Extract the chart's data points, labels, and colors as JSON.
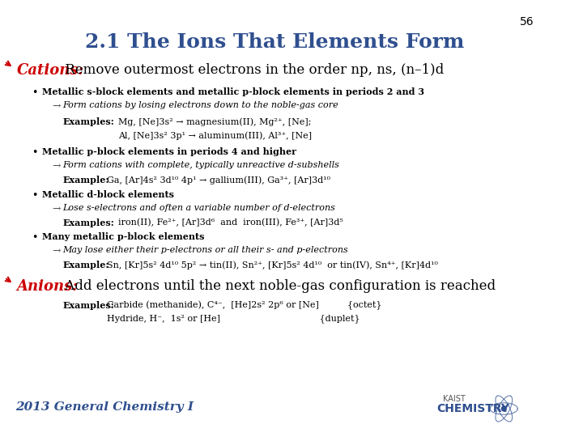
{
  "title": "2.1 The Ions That Elements Form",
  "page_number": "56",
  "background_color": "#ffffff",
  "title_color": "#2F4F8F",
  "title_fontsize": 18,
  "cation_label_color": "#cc0000",
  "anion_label_color": "#cc0000",
  "bullet_color": "#000000",
  "arrow_color": "#555555",
  "footer_text": "2013 General Chemistry I",
  "footer_color": "#2F4F8F",
  "cation_header": "Cations:",
  "cation_body": " Remove outermost electrons in the order np, ns, (n–1)d",
  "anion_header": "Anions:",
  "anion_body": " Add electrons until the next noble-gas configuration is reached",
  "bullets": [
    {
      "bold": "Metallic s-block elements and metallic p-block elements in periods 2 and 3",
      "arrow": "Form cations by losing electrons down to the noble-gas core",
      "examples_label": "Examples:",
      "examples": [
        "Mg, [Ne]3s² → magnesium(II), Mg²⁺, [Ne];",
        "Al, [Ne]3s² 3p¹ → aluminum(III), Al³⁺, [Ne]"
      ]
    },
    {
      "bold": "Metallic p-block elements in periods 4 and higher",
      "arrow": "Form cations with complete, typically unreactive d-subshells",
      "examples_label": "Example:",
      "examples": [
        "Ga, [Ar]4s² 3d¹⁰ 4p¹ → gallium(III), Ga³⁺, [Ar]3d¹⁰"
      ]
    },
    {
      "bold": "Metallic d-block elements",
      "arrow": "Lose s-electrons and often a variable number of d-electrons",
      "examples_label": "Examples:",
      "examples": [
        "iron(II), Fe²⁺, [Ar]3d⁶  and  iron(III), Fe³⁺, [Ar]3d⁵"
      ]
    },
    {
      "bold": "Many metallic p-block elements",
      "arrow": "May lose either their p-electrons or all their s- and p-electrons",
      "examples_label": "Example:",
      "examples": [
        "Sn, [Kr]5s² 4d¹⁰ 5p² → tin(II), Sn²⁺, [Kr]5s² 4d¹⁰  or tin(IV), Sn⁴⁺, [Kr]4d¹⁰"
      ]
    }
  ],
  "anion_examples_label": "Examples:",
  "anion_examples": [
    "Carbide (methanide), C⁴⁻,  [He]2s² 2p⁶ or [Ne]          {octet}",
    "Hydride, H⁻,  1s² or [He]                                   {duplet}"
  ]
}
